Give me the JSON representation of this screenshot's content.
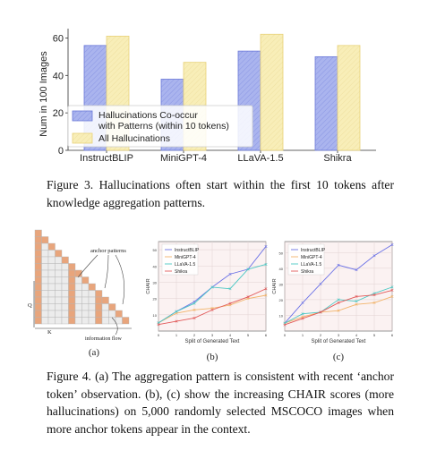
{
  "figure3": {
    "caption": "Figure 3. Hallucinations often start within the first 10 tokens after knowledge aggregation patterns.",
    "legend": [
      "Hallucinations Co-occur",
      "with Patterns (within 10 tokens)",
      "All Hallucinations"
    ],
    "colors": {
      "pattern": "#aab4ee",
      "pattern_edge": "#6a78d8",
      "all": "#f7ecb0",
      "all_edge": "#e8d27a"
    }
  },
  "figure4": {
    "caption": "Figure 4.  (a) The aggregation pattern is consistent with recent ‘anchor token’ observation.  (b), (c) show the increasing CHAIR scores (more hallucinations) on 5,000 randomly selected MSCOCO images when more anchor tokens appear in the context.",
    "panel_a": {
      "labels": {
        "anchor": "anchor patterns",
        "q": "Q",
        "k": "K",
        "flow": "information flow"
      },
      "sublabel": "(a)",
      "colors": {
        "anchor": "#e8a57c",
        "cell": "#ececec",
        "cell_edge": "#b5b5b5"
      }
    },
    "panel_b": {
      "sublabel": "(b)"
    },
    "panel_c": {
      "sublabel": "(c)"
    }
  },
  "chart_data": [
    {
      "type": "bar",
      "title": "",
      "xlabel": "",
      "ylabel": "Num in 100 Images",
      "ylim": [
        0,
        65
      ],
      "yticks": [
        0,
        20,
        40,
        60
      ],
      "categories": [
        "InstructBLIP",
        "MiniGPT-4",
        "LLaVA-1.5",
        "Shikra"
      ],
      "series": [
        {
          "name": "Hallucinations Co-occur with Patterns (within 10 tokens)",
          "values": [
            56,
            38,
            53,
            50
          ]
        },
        {
          "name": "All Hallucinations",
          "values": [
            61,
            47,
            62,
            56
          ]
        }
      ],
      "legend_position": "lower-left"
    },
    {
      "type": "line",
      "xlabel": "Split of Generated Text",
      "ylabel": "CHAIR",
      "x": [
        0,
        1,
        2,
        3,
        4,
        5,
        6
      ],
      "xlim": [
        0,
        6
      ],
      "ylim": [
        0,
        55
      ],
      "yticks": [
        10,
        20,
        30,
        40,
        50
      ],
      "grid": true,
      "legend_position": "top-left",
      "series": [
        {
          "name": "InstructBLIP",
          "color": "#6b72e6",
          "marker": "x",
          "values": [
            5,
            12,
            18,
            27,
            35,
            38,
            52
          ]
        },
        {
          "name": "MiniGPT-4",
          "color": "#f2b46a",
          "marker": "x",
          "values": [
            5,
            11,
            13,
            14,
            16,
            20,
            22
          ]
        },
        {
          "name": "LLaVA-1.5",
          "color": "#4cc8c4",
          "marker": "x",
          "values": [
            5,
            12,
            17,
            27,
            26,
            38,
            41
          ]
        },
        {
          "name": "Shikra",
          "color": "#e25a5a",
          "marker": "x",
          "values": [
            4,
            6,
            8,
            13,
            17,
            21,
            26
          ]
        }
      ]
    },
    {
      "type": "line",
      "xlabel": "Split of Generated Text",
      "ylabel": "CHAIR",
      "x": [
        0,
        1,
        2,
        3,
        4,
        5,
        6
      ],
      "xlim": [
        0,
        6
      ],
      "ylim": [
        0,
        57
      ],
      "yticks": [
        10,
        20,
        30,
        40,
        50
      ],
      "grid": true,
      "legend_position": "top-left",
      "series": [
        {
          "name": "InstructBLIP",
          "color": "#6b72e6",
          "marker": "x",
          "values": [
            5,
            18,
            30,
            42,
            39,
            48,
            55
          ]
        },
        {
          "name": "MiniGPT-4",
          "color": "#f2b46a",
          "marker": "x",
          "values": [
            5,
            9,
            12,
            13,
            17,
            18,
            22
          ]
        },
        {
          "name": "LLaVA-1.5",
          "color": "#4cc8c4",
          "marker": "x",
          "values": [
            5,
            11,
            12,
            20,
            19,
            24,
            28
          ]
        },
        {
          "name": "Shikra",
          "color": "#e25a5a",
          "marker": "x",
          "values": [
            4,
            8,
            12,
            18,
            22,
            23,
            26
          ]
        }
      ]
    }
  ]
}
